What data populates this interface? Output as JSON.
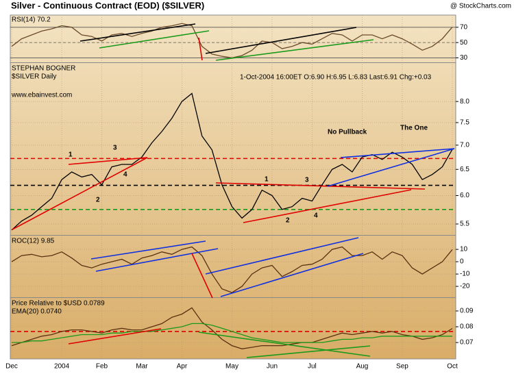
{
  "header": {
    "title": "Silver - Continuous Contract (EOD) ($SILVER)",
    "credit": "@ StockCharts.com"
  },
  "chart_data": [
    {
      "type": "line",
      "ylim": [
        25,
        86
      ],
      "yticks": [
        30,
        50,
        70
      ],
      "levels": [
        {
          "value": 70,
          "color": "#555"
        },
        {
          "value": 50,
          "color": "#555"
        },
        {
          "value": 30,
          "color": "#555"
        }
      ],
      "series": [
        {
          "name": "RSI(14) 70.2",
          "color": "#6a4a2a",
          "values": [
            45,
            55,
            60,
            65,
            68,
            72,
            70,
            60,
            58,
            52,
            60,
            62,
            58,
            62,
            65,
            70,
            72,
            75,
            72,
            45,
            35,
            32,
            30,
            33,
            40,
            52,
            50,
            42,
            45,
            50,
            48,
            55,
            62,
            60,
            52,
            60,
            60,
            55,
            60,
            55,
            48,
            40,
            45,
            55,
            70.2
          ]
        }
      ]
    },
    {
      "type": "line",
      "log": true,
      "ylim": [
        5.33,
        8.98
      ],
      "yticks": [
        5.5,
        {
          "value": 6,
          "label": "6.0"
        },
        6.5,
        {
          "value": 7,
          "label": "7.0"
        },
        7.5,
        {
          "value": 8,
          "label": "8.0"
        }
      ],
      "info": "1-Oct-2004 16:00ET  O:6.90  H:6.95  L:6.83  Last:6.91  Chg:+0.03",
      "annotations": [
        "STEPHAN BOGNER",
        "www.ebainvest.com",
        "No Pullback",
        "The One",
        "1",
        "2",
        "3",
        "4",
        "1",
        "2",
        "3",
        "4"
      ],
      "levels": [
        {
          "value": 6.72,
          "color": "#e00000"
        },
        {
          "value": 6.19,
          "color": "#000000"
        },
        {
          "value": 5.75,
          "color": "#1a9a1a"
        }
      ],
      "series": [
        {
          "name": "$SILVER Daily",
          "color": "#000000",
          "values": [
            5.4,
            5.55,
            5.65,
            5.8,
            5.95,
            6.3,
            6.45,
            6.35,
            6.4,
            6.2,
            6.55,
            6.6,
            6.6,
            6.75,
            7.05,
            7.3,
            7.6,
            8.0,
            8.2,
            7.2,
            6.9,
            6.2,
            5.8,
            5.6,
            5.75,
            6.1,
            6.0,
            5.75,
            5.8,
            5.95,
            5.9,
            6.2,
            6.5,
            6.6,
            6.45,
            6.75,
            6.8,
            6.7,
            6.85,
            6.75,
            6.6,
            6.3,
            6.4,
            6.55,
            6.91
          ]
        }
      ]
    },
    {
      "type": "line",
      "ylim": [
        -28.3,
        20.6
      ],
      "yticks": [
        -20,
        -10,
        0,
        10
      ],
      "series": [
        {
          "name": "ROC(12) 9.85",
          "color": "#5a3010",
          "values": [
            0,
            5,
            6,
            4,
            5,
            8,
            3,
            -3,
            -5,
            -2,
            0,
            2,
            -2,
            3,
            5,
            8,
            6,
            10,
            12,
            5,
            -10,
            -22,
            -25,
            -20,
            -10,
            -5,
            -3,
            -12,
            -8,
            -3,
            -2,
            2,
            10,
            12,
            5,
            5,
            8,
            2,
            8,
            5,
            -5,
            -10,
            -5,
            0,
            9.85
          ]
        }
      ]
    },
    {
      "type": "line",
      "ylim": [
        0.0596,
        0.0978
      ],
      "yticks": [
        0.07,
        0.08,
        0.09
      ],
      "levels": [
        {
          "value": 0.077,
          "color": "#e00000"
        }
      ],
      "categories": [
        "Dec",
        null,
        null,
        null,
        null,
        "2004",
        null,
        null,
        null,
        "Feb",
        null,
        null,
        null,
        "Mar",
        null,
        null,
        null,
        "Apr",
        null,
        null,
        null,
        null,
        "May",
        null,
        null,
        null,
        "Jun",
        null,
        null,
        null,
        "Jul",
        null,
        null,
        null,
        null,
        "Aug",
        null,
        null,
        null,
        "Sep",
        null,
        null,
        null,
        null,
        "Oct"
      ],
      "series": [
        {
          "name": "Price Relative to $USD 0.0789",
          "color": "#5a3010",
          "values": [
            0.068,
            0.07,
            0.072,
            0.074,
            0.075,
            0.077,
            0.078,
            0.078,
            0.077,
            0.076,
            0.078,
            0.079,
            0.078,
            0.078,
            0.08,
            0.082,
            0.086,
            0.088,
            0.092,
            0.083,
            0.078,
            0.072,
            0.068,
            0.066,
            0.067,
            0.068,
            0.068,
            0.068,
            0.069,
            0.07,
            0.07,
            0.072,
            0.074,
            0.076,
            0.075,
            0.076,
            0.077,
            0.076,
            0.077,
            0.075,
            0.074,
            0.072,
            0.073,
            0.075,
            0.0789
          ]
        },
        {
          "name": "EMA(20) 0.0740",
          "color": "#1a9a1a",
          "values": [
            0.07,
            0.07,
            0.071,
            0.071,
            0.072,
            0.073,
            0.074,
            0.075,
            0.075,
            0.075,
            0.076,
            0.076,
            0.077,
            0.077,
            0.077,
            0.078,
            0.079,
            0.08,
            0.082,
            0.082,
            0.081,
            0.079,
            0.077,
            0.075,
            0.073,
            0.072,
            0.071,
            0.07,
            0.07,
            0.07,
            0.07,
            0.07,
            0.071,
            0.072,
            0.072,
            0.073,
            0.073,
            0.074,
            0.074,
            0.074,
            0.074,
            0.074,
            0.074,
            0.074,
            0.074
          ]
        }
      ]
    }
  ]
}
